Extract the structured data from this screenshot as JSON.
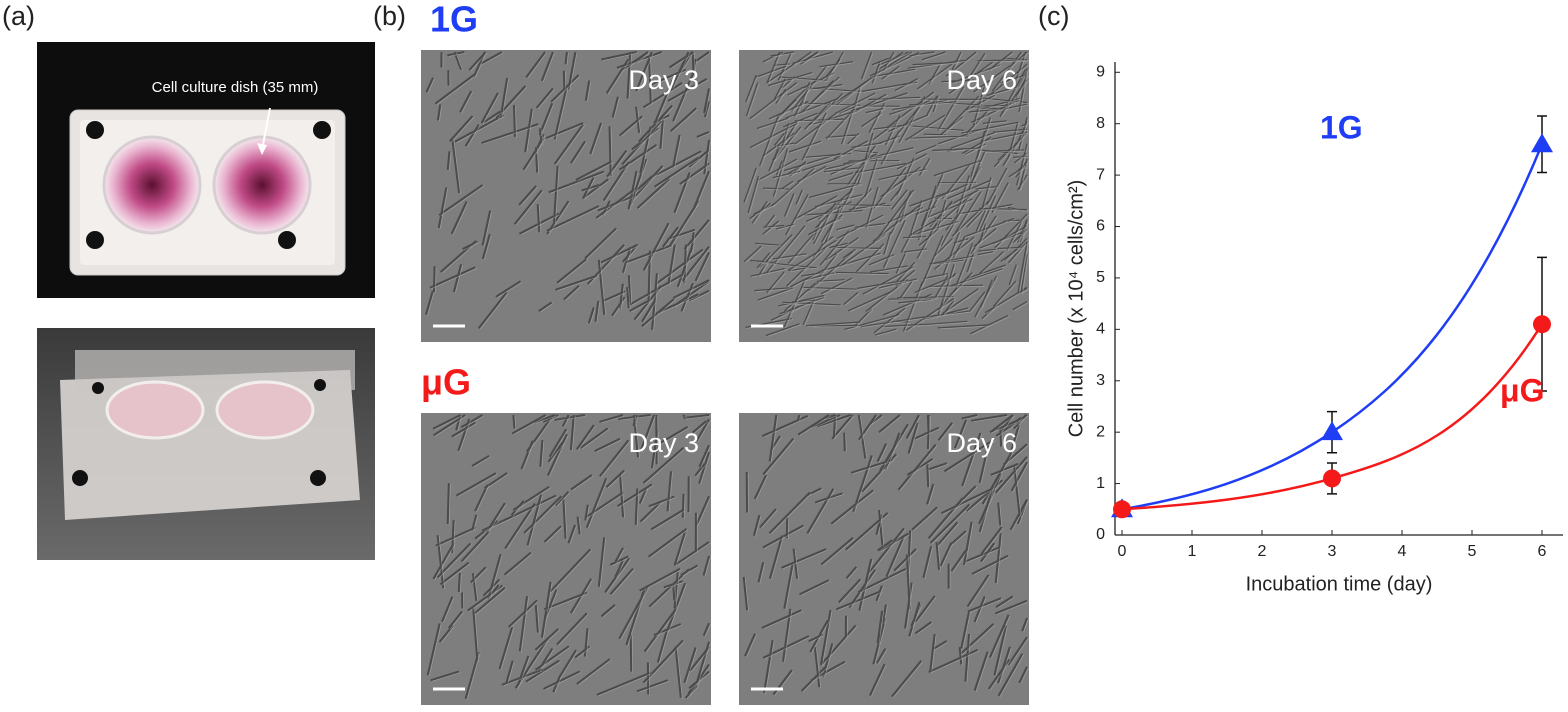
{
  "panels": {
    "a": {
      "label": "(a)",
      "annotation": "Cell culture dish (35 mm)"
    },
    "b": {
      "label": "(b)",
      "rows": [
        {
          "condition": "1G",
          "days": [
            "Day 3",
            "Day 6"
          ]
        },
        {
          "condition": "μG",
          "days": [
            "Day 3",
            "Day 6"
          ]
        }
      ]
    },
    "c": {
      "label": "(c)"
    }
  },
  "chart_data": {
    "type": "line",
    "xlabel": "Incubation time (day)",
    "ylabel": "Cell number (x 10⁴ cells/cm²)",
    "x": [
      0,
      3,
      6
    ],
    "xlim": [
      -0.1,
      6.3
    ],
    "xticks": [
      0,
      1,
      2,
      3,
      4,
      5,
      6
    ],
    "ylim": [
      0,
      9.2
    ],
    "yticks": [
      0,
      1,
      2,
      3,
      4,
      5,
      6,
      7,
      8,
      9
    ],
    "series": [
      {
        "name": "1G",
        "color": "#1f3df5",
        "marker": "triangle",
        "values": [
          0.5,
          2.0,
          7.6
        ],
        "errors": [
          0.05,
          0.4,
          0.55
        ]
      },
      {
        "name": "μG",
        "color": "#f51a1a",
        "marker": "circle",
        "values": [
          0.5,
          1.1,
          4.1
        ],
        "errors": [
          0.05,
          0.3,
          1.3
        ]
      }
    ]
  }
}
